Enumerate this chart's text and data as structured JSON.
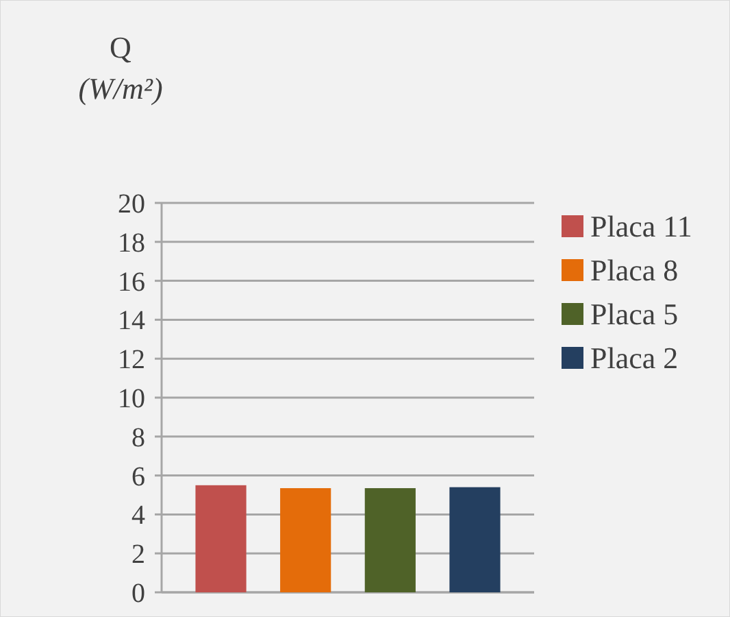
{
  "chart_data": {
    "type": "bar",
    "ylabel": "Q (W/m²)",
    "categories": [
      null
    ],
    "series": [
      {
        "name": "Placa 11",
        "color": "#c0504d",
        "values": [
          5.5
        ]
      },
      {
        "name": "Placa 8",
        "color": "#e46c0a",
        "values": [
          5.35
        ]
      },
      {
        "name": "Placa 5",
        "color": "#4f6228",
        "values": [
          5.35
        ]
      },
      {
        "name": "Placa 2",
        "color": "#243f60",
        "values": [
          5.4
        ]
      }
    ],
    "ylim": [
      0,
      20
    ],
    "yticks": [
      0,
      2,
      4,
      6,
      8,
      10,
      12,
      14,
      16,
      18,
      20
    ],
    "grid": "y",
    "legend": "right"
  }
}
